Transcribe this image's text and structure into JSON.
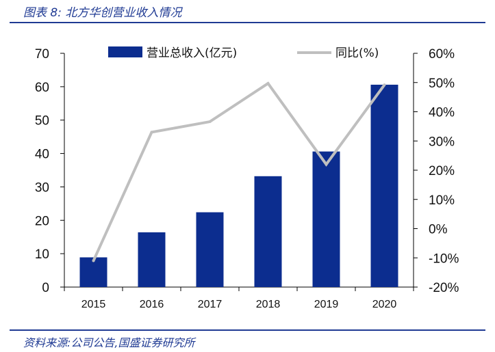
{
  "header": {
    "title": "图表 8:  北方华创营业收入情况"
  },
  "footer": {
    "source": "资料来源:公司公告,国盛证券研究所"
  },
  "colors": {
    "bar": "#0c2d8f",
    "line": "#bfbfbf",
    "accent": "#1f3a93"
  },
  "chart_data": {
    "type": "bar",
    "categories": [
      "2015",
      "2016",
      "2017",
      "2018",
      "2019",
      "2020"
    ],
    "series": [
      {
        "name": "营业总收入(亿元)",
        "type": "bar",
        "axis": "left",
        "values": [
          8.9,
          16.4,
          22.4,
          33.2,
          40.6,
          60.6
        ]
      },
      {
        "name": "同比(%)",
        "type": "line",
        "axis": "right",
        "values": [
          -11.0,
          33.0,
          36.6,
          49.7,
          22.0,
          49.2
        ]
      }
    ],
    "y_left": {
      "ylim": [
        0,
        70
      ],
      "ticks": [
        "0",
        "10",
        "20",
        "30",
        "40",
        "50",
        "60",
        "70"
      ]
    },
    "y_right": {
      "ylim": [
        -20,
        60
      ],
      "ticks": [
        "-20%",
        "-10%",
        "0%",
        "10%",
        "20%",
        "30%",
        "40%",
        "50%",
        "60%"
      ]
    },
    "legend": {
      "position": "top",
      "bar_label": "营业总收入(亿元)",
      "line_label": "同比(%)"
    },
    "grid": false
  }
}
